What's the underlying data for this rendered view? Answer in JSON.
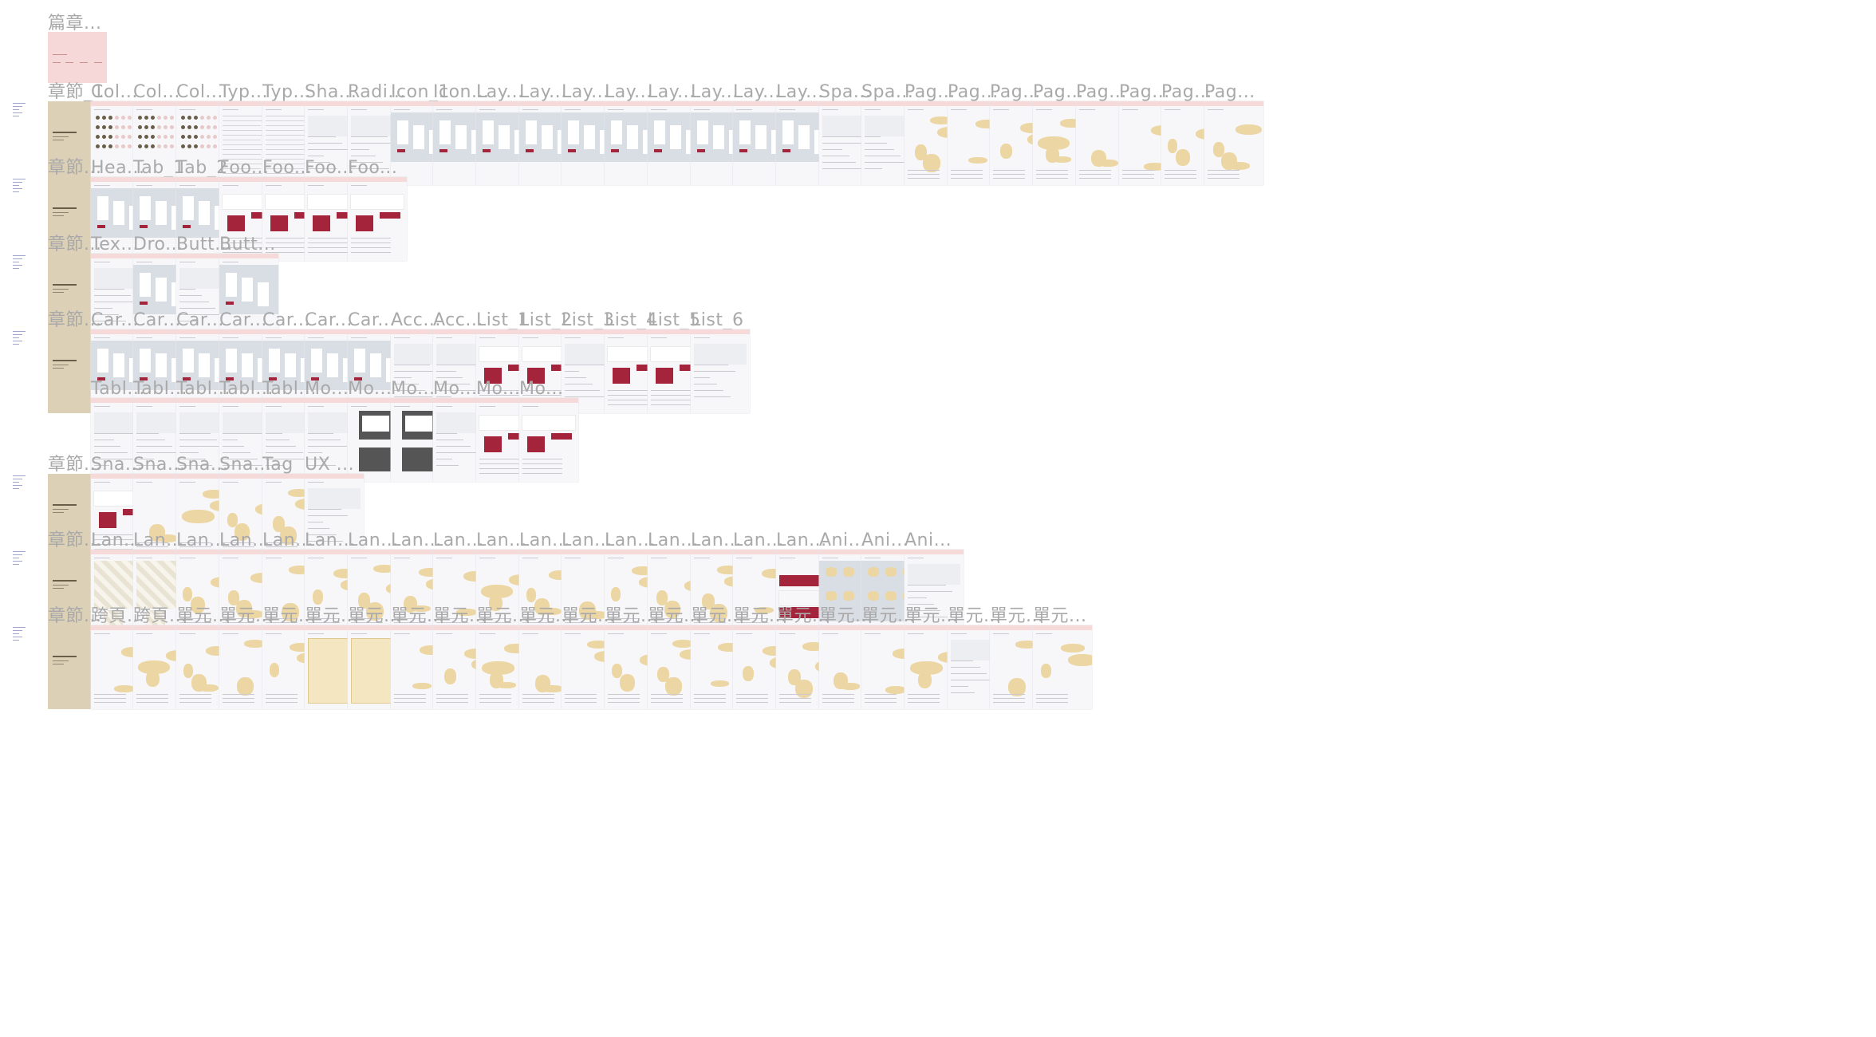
{
  "colors": {
    "label": "#a9a9a9",
    "frame_bg": "#f7f7f9",
    "frame_header": "#f6d9d9",
    "cover": "#dcd0b6",
    "accent_red": "#a3243b",
    "panel_blue": "#d9dde4",
    "illustration": "#ecd6a3"
  },
  "top_frame": {
    "label": "篇章..."
  },
  "rows": [
    {
      "labels": [
        "章節_1",
        "Col...",
        "Col...",
        "Col...",
        "Typ...",
        "Typ...",
        "Sha...",
        "Radi...",
        "Icon_1",
        "Icon...",
        "Lay...",
        "Lay...",
        "Lay...",
        "Lay...",
        "Lay...",
        "Lay...",
        "Lay...",
        "Lay...",
        "Spa...",
        "Spa...",
        "Pag...",
        "Pag...",
        "Pag...",
        "Pag...",
        "Pag...",
        "Pag...",
        "Pag...",
        "Pag..."
      ],
      "kinds": [
        "cover",
        "color",
        "color",
        "color",
        "table",
        "table",
        "list",
        "list",
        "blue",
        "blue",
        "blue",
        "blue",
        "blue",
        "blue",
        "blue",
        "blue",
        "blue",
        "blue",
        "list",
        "list",
        "illu",
        "illu",
        "illu",
        "illu",
        "illu",
        "illu",
        "illu",
        "illu"
      ]
    },
    {
      "labels": [
        "章節...",
        "Hea...",
        "Tab_1",
        "Tab_2",
        "Foo...",
        "Foo...",
        "Foo...",
        "Foo..."
      ],
      "kinds": [
        "cover",
        "blue",
        "blue",
        "blue",
        "red",
        "red",
        "red",
        "red"
      ]
    },
    {
      "labels": [
        "章節...",
        "Tex...",
        "Dro...",
        "Butt...",
        "Butt..."
      ],
      "kinds": [
        "cover",
        "list",
        "blue",
        "list",
        "blue"
      ]
    },
    {
      "labels": [
        "章節...",
        "Car...",
        "Car...",
        "Car...",
        "Car...",
        "Car...",
        "Car...",
        "Car...",
        "Acc...",
        "Acc...",
        "List_1",
        "List_2",
        "List_3",
        "List_4",
        "List_5",
        "List_6"
      ],
      "kinds": [
        "cover",
        "blue",
        "blue",
        "blue",
        "blue",
        "blue",
        "blue",
        "blue",
        "list",
        "list",
        "red",
        "red",
        "list",
        "red",
        "red",
        "list"
      ]
    },
    {
      "labels": [
        "",
        "Tabl...",
        "Tabl...",
        "Tabl...",
        "Tabl...",
        "Tabl...",
        "Mo...",
        "Mo...",
        "Mo...",
        "Mo...",
        "Mo...",
        "Mo..."
      ],
      "kinds": [
        "none",
        "list",
        "list",
        "list",
        "list",
        "list",
        "list",
        "dark",
        "dark",
        "list",
        "red",
        "red"
      ]
    },
    {
      "labels": [
        "章節...",
        "Sna...",
        "Sna...",
        "Sna...",
        "Sna...",
        "Tag",
        "UX ..."
      ],
      "kinds": [
        "cover",
        "red",
        "illu",
        "illu",
        "illu",
        "illu",
        "list"
      ]
    },
    {
      "labels": [
        "章節...",
        "Lan...",
        "Lan...",
        "Lan...",
        "Lan...",
        "Lan...",
        "Lan...",
        "Lan...",
        "Lan...",
        "Lan...",
        "Lan...",
        "Lan...",
        "Lan...",
        "Lan...",
        "Lan...",
        "Lan...",
        "Lan...",
        "Lan...",
        "Ani...",
        "Ani...",
        "Ani..."
      ],
      "kinds": [
        "cover",
        "stripe",
        "stripe",
        "illu",
        "illu",
        "illu",
        "illu",
        "illu",
        "illu",
        "illu",
        "illu",
        "illu",
        "illu",
        "illu",
        "illu",
        "illu",
        "illu",
        "redblock",
        "blueanim",
        "blueanim",
        "list"
      ]
    },
    {
      "labels": [
        "章節...",
        "跨頁...",
        "跨頁...",
        "單元...",
        "單元...",
        "單元...",
        "單元...",
        "單元...",
        "單元...",
        "單元...",
        "單元...",
        "單元...",
        "單元...",
        "單元...",
        "單元...",
        "單元...",
        "單元...",
        "單元...",
        "單元...",
        "單元...",
        "單元...",
        "單元...",
        "單元...",
        "單元..."
      ],
      "kinds": [
        "cover",
        "illu",
        "illu",
        "illu",
        "illu",
        "illu",
        "frame",
        "frame",
        "illu",
        "illu",
        "illu",
        "illu",
        "illu",
        "illu",
        "illu",
        "illu",
        "illu",
        "illu",
        "illu",
        "illu",
        "illu",
        "list",
        "illu",
        "illu"
      ]
    }
  ]
}
